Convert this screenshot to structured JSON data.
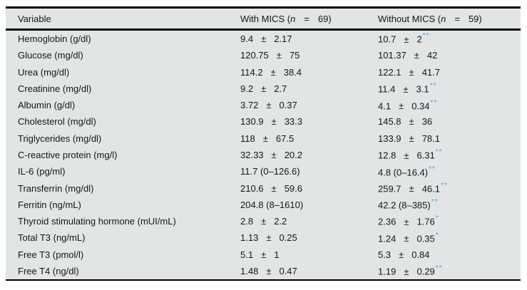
{
  "table": {
    "title_semantic": "Laboratory variables compared between patients with and without MICS",
    "colors": {
      "table_background": "#e1e5e6",
      "rule_color": "#000000",
      "significance_marker": "#3fa5df",
      "text": "#161616"
    },
    "header": {
      "variable": "Variable",
      "with_group": {
        "prefix": "With MICS (",
        "n": "n",
        "eq": "=",
        "count": "69)"
      },
      "without_group": {
        "prefix": "Without MICS (",
        "n": "n",
        "eq": "=",
        "count": "59)"
      }
    },
    "rows": [
      {
        "label": "Hemoglobin (g/dl)",
        "with": {
          "v": "9.4",
          "pm": "±",
          "sd": "2.17",
          "sup": ""
        },
        "without": {
          "v": "10.7",
          "pm": "±",
          "sd": "2",
          "sup": "**"
        }
      },
      {
        "label": "Glucose (mg/dl)",
        "with": {
          "v": "120.75",
          "pm": "±",
          "sd": "75",
          "sup": ""
        },
        "without": {
          "v": "101.37",
          "pm": "±",
          "sd": "42",
          "sup": ""
        }
      },
      {
        "label": "Urea (mg/dl)",
        "with": {
          "v": "114.2",
          "pm": "±",
          "sd": "38.4",
          "sup": ""
        },
        "without": {
          "v": "122.1",
          "pm": "±",
          "sd": "41.7",
          "sup": ""
        }
      },
      {
        "label": "Creatinine (mg/dl)",
        "with": {
          "v": "9.2",
          "pm": "±",
          "sd": "2.7",
          "sup": ""
        },
        "without": {
          "v": "11.4",
          "pm": "±",
          "sd": "3.1",
          "sup": "**"
        }
      },
      {
        "label": "Albumin (g/dl)",
        "with": {
          "v": "3.72",
          "pm": "±",
          "sd": "0.37",
          "sup": ""
        },
        "without": {
          "v": "4.1",
          "pm": "±",
          "sd": "0.34",
          "sup": "**"
        }
      },
      {
        "label": "Cholesterol (mg/dl)",
        "with": {
          "v": "130.9",
          "pm": "±",
          "sd": "33.3",
          "sup": ""
        },
        "without": {
          "v": "145.8",
          "pm": "±",
          "sd": "36",
          "sup": ""
        }
      },
      {
        "label": "Triglycerides (mg/dl)",
        "with": {
          "v": "118",
          "pm": "±",
          "sd": "67.5",
          "sup": ""
        },
        "without": {
          "v": "133.9",
          "pm": "±",
          "sd": "78.1",
          "sup": ""
        }
      },
      {
        "label": "C-reactive protein (mg/l)",
        "with": {
          "v": "32.33",
          "pm": "±",
          "sd": "20.2",
          "sup": ""
        },
        "without": {
          "v": "12.8",
          "pm": "±",
          "sd": "6.31",
          "sup": "**"
        }
      },
      {
        "label": "IL-6 (pg/ml)",
        "with": {
          "v": "11.7 (0–126.6)",
          "pm": "",
          "sd": "",
          "sup": ""
        },
        "without": {
          "v": "4.8 (0–16.4)",
          "pm": "",
          "sd": "",
          "sup": "**"
        }
      },
      {
        "label": "Transferrin (mg/dl)",
        "with": {
          "v": "210.6",
          "pm": "±",
          "sd": "59.6",
          "sup": ""
        },
        "without": {
          "v": "259.7",
          "pm": "±",
          "sd": "46.1",
          "sup": "**"
        }
      },
      {
        "label": "Ferritin (ng/mL)",
        "with": {
          "v": "204.8 (8–1610)",
          "pm": "",
          "sd": "",
          "sup": ""
        },
        "without": {
          "v": "42.2 (8–385)",
          "pm": "",
          "sd": "",
          "sup": "**"
        }
      },
      {
        "label": "Thyroid stimulating hormone (mUI/mL)",
        "with": {
          "v": "2.8",
          "pm": "±",
          "sd": "2.2",
          "sup": ""
        },
        "without": {
          "v": "2.36",
          "pm": "±",
          "sd": "1.76",
          "sup": "*"
        }
      },
      {
        "label": "Total T3 (ng/mL)",
        "with": {
          "v": "1.13",
          "pm": "±",
          "sd": "0.25",
          "sup": ""
        },
        "without": {
          "v": "1.24",
          "pm": "±",
          "sd": "0.35",
          "sup": "*"
        }
      },
      {
        "label": "Free T3 (pmol/l)",
        "with": {
          "v": "5.1",
          "pm": "±",
          "sd": "1",
          "sup": ""
        },
        "without": {
          "v": "5.3",
          "pm": "±",
          "sd": "0.84",
          "sup": ""
        }
      },
      {
        "label": "Free T4 (ng/dl)",
        "with": {
          "v": "1.48",
          "pm": "±",
          "sd": "0.47",
          "sup": ""
        },
        "without": {
          "v": "1.19",
          "pm": "±",
          "sd": "0.29",
          "sup": "**"
        }
      }
    ]
  }
}
